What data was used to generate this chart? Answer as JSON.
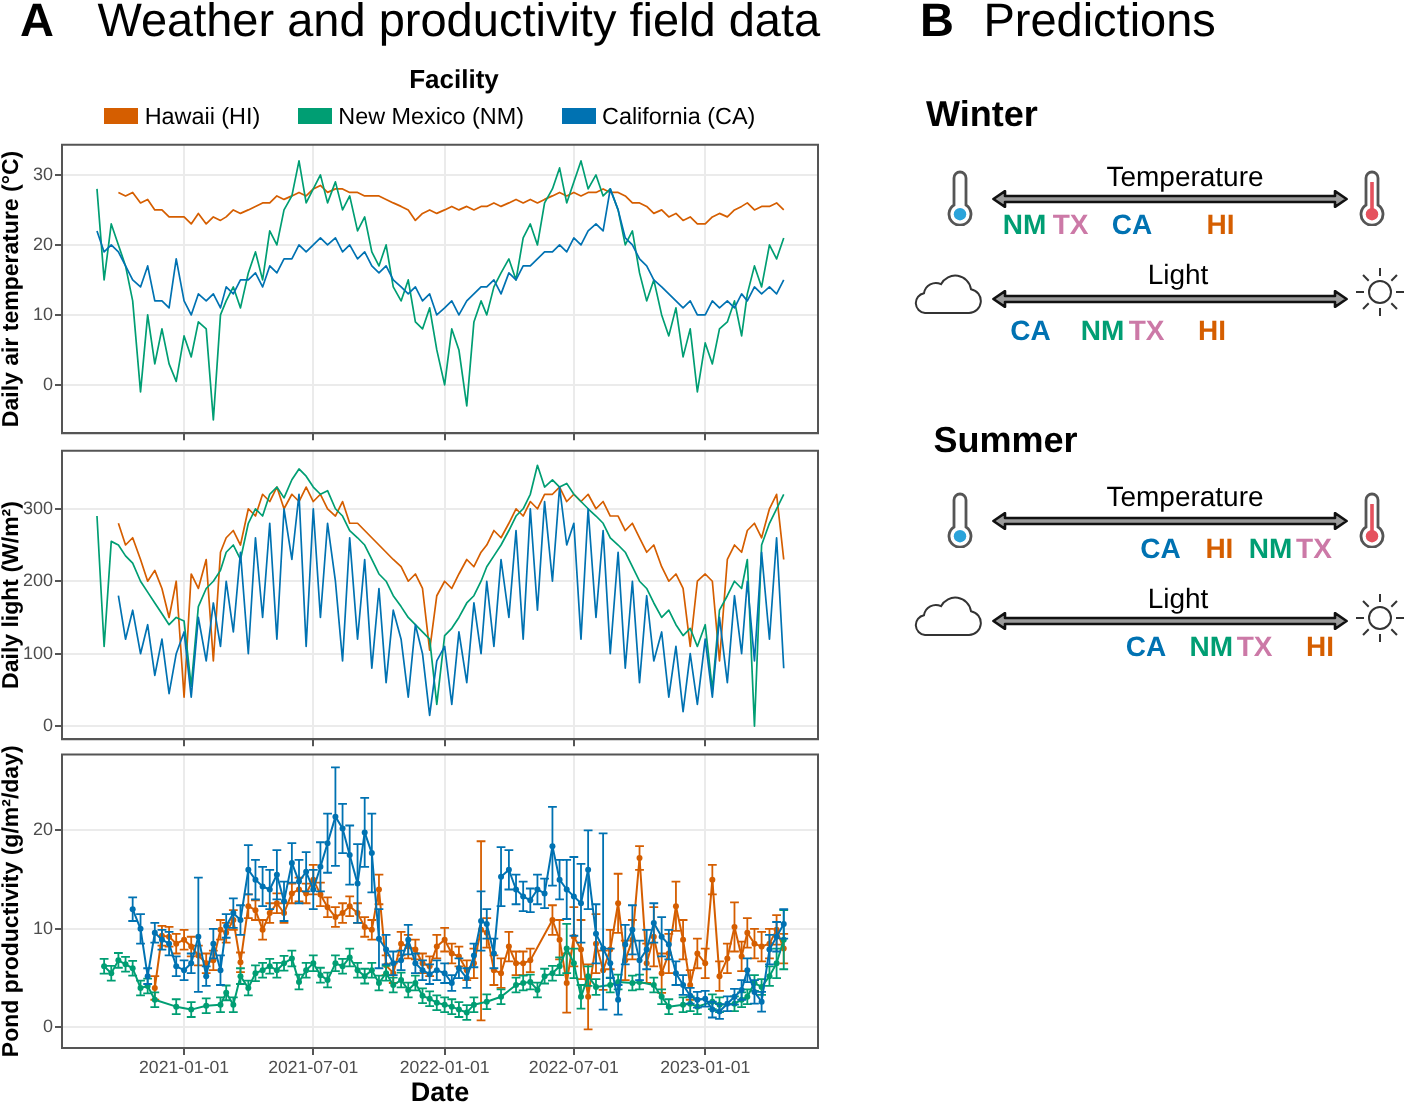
{
  "chart_data": [
    {
      "type": "line",
      "title": "Weather and productivity field data",
      "annotations": [
        "A"
      ],
      "legend_title": "Facility",
      "legend": "top",
      "ylabel": "Daily air temperature (°C)",
      "tick_labels": "y",
      "grid": true,
      "x": [
        "2020-09-01",
        "2020-09-11",
        "2020-09-21",
        "2020-10-01",
        "2020-10-11",
        "2020-10-21",
        "2020-11-01",
        "2020-11-11",
        "2020-11-21",
        "2020-12-01",
        "2020-12-11",
        "2020-12-21",
        "2021-01-01",
        "2021-01-11",
        "2021-01-21",
        "2021-02-01",
        "2021-02-11",
        "2021-02-21",
        "2021-03-01",
        "2021-03-11",
        "2021-03-21",
        "2021-04-01",
        "2021-04-11",
        "2021-04-21",
        "2021-05-01",
        "2021-05-11",
        "2021-05-21",
        "2021-06-01",
        "2021-06-11",
        "2021-06-21",
        "2021-07-01",
        "2021-07-11",
        "2021-07-21",
        "2021-08-01",
        "2021-08-11",
        "2021-08-21",
        "2021-09-01",
        "2021-09-11",
        "2021-09-21",
        "2021-10-01",
        "2021-10-11",
        "2021-10-21",
        "2021-11-01",
        "2021-11-11",
        "2021-11-21",
        "2021-12-01",
        "2021-12-11",
        "2021-12-21",
        "2022-01-01",
        "2022-01-11",
        "2022-01-21",
        "2022-02-01",
        "2022-02-11",
        "2022-02-21",
        "2022-03-01",
        "2022-03-11",
        "2022-03-21",
        "2022-04-01",
        "2022-04-11",
        "2022-04-21",
        "2022-05-01",
        "2022-05-11",
        "2022-05-21",
        "2022-06-01",
        "2022-06-11",
        "2022-06-21",
        "2022-07-01",
        "2022-07-11",
        "2022-07-21",
        "2022-08-01",
        "2022-08-11",
        "2022-08-21",
        "2022-09-01",
        "2022-09-11",
        "2022-09-21",
        "2022-10-01",
        "2022-10-11",
        "2022-10-21",
        "2022-11-01",
        "2022-11-11",
        "2022-11-21",
        "2022-12-01",
        "2022-12-11",
        "2022-12-21",
        "2023-01-01",
        "2023-01-11",
        "2023-01-21",
        "2023-02-01",
        "2023-02-11",
        "2023-02-21",
        "2023-03-01",
        "2023-03-11",
        "2023-03-21",
        "2023-04-01",
        "2023-04-11",
        "2023-04-21"
      ],
      "xlim": [
        "2020-07-14",
        "2023-06-08"
      ],
      "xticks": [
        "2021-01-01",
        "2021-07-01",
        "2022-01-01",
        "2022-07-01",
        "2023-01-01"
      ],
      "ylim": [
        -6.9,
        34.3
      ],
      "yticks": [
        0,
        10,
        20,
        30
      ],
      "series": [
        {
          "name": "Hawaii (HI)",
          "color": "#d55e00",
          "values": [
            null,
            null,
            null,
            27.5,
            27,
            27.5,
            26,
            26.5,
            25,
            25,
            24,
            24,
            24,
            23,
            24.5,
            23,
            24,
            23.5,
            24,
            25,
            24.5,
            25,
            25.5,
            26,
            26,
            27,
            26.5,
            27,
            27.5,
            27,
            28,
            28.5,
            27.5,
            28,
            28,
            27.5,
            27.5,
            27,
            27,
            27,
            26.5,
            26,
            25.5,
            25,
            23.5,
            24.5,
            25,
            24.5,
            25,
            25.5,
            25,
            25.5,
            25,
            25.5,
            25.5,
            26,
            25.5,
            26,
            26.5,
            26,
            26.5,
            26,
            26.5,
            27,
            27.5,
            27,
            27.5,
            27,
            27.5,
            27.5,
            28,
            27.5,
            27.5,
            27,
            26,
            26,
            25.5,
            24.5,
            25,
            24,
            24.5,
            23.5,
            24,
            23,
            23,
            24,
            24.5,
            24,
            25,
            25.5,
            26,
            25,
            25.5,
            25.5,
            26,
            25
          ]
        },
        {
          "name": "New Mexico (NM)",
          "color": "#009e73",
          "values": [
            28,
            15,
            23,
            20,
            17,
            12,
            -1,
            10,
            3,
            8,
            3,
            0.5,
            7,
            4,
            9,
            8,
            -5,
            10,
            12,
            14,
            11,
            16,
            19,
            15,
            22,
            20,
            25,
            27,
            32,
            26,
            28,
            30,
            26,
            29,
            25,
            27,
            22,
            24,
            19,
            17,
            20,
            14,
            12,
            15,
            9,
            8,
            11,
            5,
            0,
            8,
            5,
            -3,
            9,
            12,
            10,
            14,
            16,
            18,
            15,
            21,
            23,
            20,
            26,
            28,
            31,
            26,
            29,
            32,
            28,
            30,
            27,
            28,
            25,
            20,
            22,
            16,
            12,
            15,
            10,
            7,
            11,
            4,
            8,
            -1,
            6,
            3,
            8,
            9,
            12,
            7,
            13,
            17,
            14,
            20,
            18,
            21
          ]
        },
        {
          "name": "California (CA)",
          "color": "#0072b2",
          "values": [
            22,
            19,
            20,
            19,
            17,
            15,
            14,
            17,
            12,
            12,
            11,
            18,
            12,
            10,
            13,
            12,
            13,
            11,
            14,
            13,
            15,
            15,
            16,
            14,
            17,
            16,
            18,
            18,
            20,
            19,
            20,
            21,
            20,
            21,
            19,
            20,
            18,
            19,
            17,
            16,
            17,
            15,
            14,
            13,
            14,
            12,
            13,
            10,
            11,
            12,
            10,
            12,
            13,
            14,
            14,
            15,
            13,
            16,
            15,
            17,
            17,
            18,
            19,
            19,
            20,
            19,
            21,
            20,
            22,
            23,
            22,
            28,
            25,
            21,
            20,
            18,
            17,
            15,
            14,
            13,
            12,
            11,
            12,
            10,
            10,
            12,
            11,
            12,
            11,
            13,
            12,
            14,
            13,
            14,
            13,
            15
          ]
        }
      ]
    },
    {
      "type": "line",
      "ylabel": "Daily light (W/m²)",
      "tick_labels": "y",
      "grid": true,
      "x": [
        "2020-09-01",
        "2020-09-11",
        "2020-09-21",
        "2020-10-01",
        "2020-10-11",
        "2020-10-21",
        "2020-11-01",
        "2020-11-11",
        "2020-11-21",
        "2020-12-01",
        "2020-12-11",
        "2020-12-21",
        "2021-01-01",
        "2021-01-11",
        "2021-01-21",
        "2021-02-01",
        "2021-02-11",
        "2021-02-21",
        "2021-03-01",
        "2021-03-11",
        "2021-03-21",
        "2021-04-01",
        "2021-04-11",
        "2021-04-21",
        "2021-05-01",
        "2021-05-11",
        "2021-05-21",
        "2021-06-01",
        "2021-06-11",
        "2021-06-21",
        "2021-07-01",
        "2021-07-11",
        "2021-07-21",
        "2021-08-01",
        "2021-08-11",
        "2021-08-21",
        "2021-09-01",
        "2021-09-11",
        "2021-09-21",
        "2021-10-01",
        "2021-10-11",
        "2021-10-21",
        "2021-11-01",
        "2021-11-11",
        "2021-11-21",
        "2021-12-01",
        "2021-12-11",
        "2021-12-21",
        "2022-01-01",
        "2022-01-11",
        "2022-01-21",
        "2022-02-01",
        "2022-02-11",
        "2022-02-21",
        "2022-03-01",
        "2022-03-11",
        "2022-03-21",
        "2022-04-01",
        "2022-04-11",
        "2022-04-21",
        "2022-05-01",
        "2022-05-11",
        "2022-05-21",
        "2022-06-01",
        "2022-06-11",
        "2022-06-21",
        "2022-07-01",
        "2022-07-11",
        "2022-07-21",
        "2022-08-01",
        "2022-08-11",
        "2022-08-21",
        "2022-09-01",
        "2022-09-11",
        "2022-09-21",
        "2022-10-01",
        "2022-10-11",
        "2022-10-21",
        "2022-11-01",
        "2022-11-11",
        "2022-11-21",
        "2022-12-01",
        "2022-12-11",
        "2022-12-21",
        "2023-01-01",
        "2023-01-11",
        "2023-01-21",
        "2023-02-01",
        "2023-02-11",
        "2023-02-21",
        "2023-03-01",
        "2023-03-11",
        "2023-03-21",
        "2023-04-01",
        "2023-04-11",
        "2023-04-21"
      ],
      "xlim": [
        "2020-07-14",
        "2023-06-08"
      ],
      "xticks": [
        "2021-01-01",
        "2021-07-01",
        "2022-01-01",
        "2022-07-01",
        "2023-01-01"
      ],
      "ylim": [
        -18,
        380
      ],
      "yticks": [
        0,
        100,
        200,
        300
      ],
      "series": [
        {
          "color": "#d55e00",
          "values": [
            null,
            null,
            null,
            280,
            250,
            260,
            230,
            200,
            215,
            190,
            150,
            200,
            40,
            210,
            190,
            230,
            90,
            240,
            260,
            270,
            250,
            300,
            290,
            320,
            310,
            330,
            300,
            320,
            310,
            330,
            310,
            320,
            300,
            290,
            310,
            280,
            280,
            270,
            260,
            250,
            240,
            230,
            220,
            200,
            210,
            190,
            105,
            180,
            200,
            190,
            210,
            230,
            220,
            240,
            250,
            270,
            260,
            280,
            300,
            290,
            310,
            300,
            320,
            320,
            330,
            310,
            320,
            310,
            320,
            300,
            310,
            290,
            290,
            270,
            280,
            260,
            240,
            250,
            220,
            200,
            210,
            190,
            110,
            200,
            210,
            200,
            90,
            230,
            250,
            240,
            270,
            280,
            260,
            300,
            320,
            230
          ]
        },
        {
          "color": "#009e73",
          "values": [
            290,
            110,
            255,
            250,
            235,
            225,
            200,
            185,
            170,
            155,
            140,
            150,
            145,
            55,
            165,
            190,
            200,
            215,
            240,
            250,
            230,
            280,
            300,
            290,
            320,
            330,
            315,
            340,
            355,
            345,
            330,
            320,
            325,
            300,
            290,
            270,
            260,
            250,
            230,
            210,
            200,
            180,
            165,
            150,
            140,
            130,
            120,
            30,
            125,
            135,
            150,
            170,
            180,
            200,
            220,
            235,
            250,
            270,
            290,
            300,
            320,
            360,
            330,
            340,
            330,
            335,
            320,
            310,
            300,
            290,
            280,
            260,
            250,
            240,
            220,
            200,
            190,
            170,
            150,
            160,
            140,
            125,
            135,
            110,
            140,
            50,
            160,
            180,
            200,
            190,
            230,
            0,
            250,
            280,
            300,
            320
          ]
        },
        {
          "color": "#0072b2",
          "values": [
            null,
            null,
            null,
            180,
            120,
            160,
            100,
            140,
            70,
            120,
            45,
            100,
            130,
            40,
            150,
            90,
            170,
            110,
            200,
            130,
            240,
            100,
            260,
            150,
            280,
            120,
            300,
            230,
            320,
            110,
            300,
            150,
            280,
            200,
            90,
            260,
            120,
            230,
            80,
            190,
            60,
            160,
            120,
            40,
            140,
            100,
            15,
            90,
            110,
            30,
            130,
            60,
            170,
            100,
            200,
            110,
            230,
            150,
            270,
            120,
            300,
            160,
            310,
            200,
            330,
            250,
            280,
            120,
            300,
            150,
            270,
            100,
            240,
            80,
            200,
            60,
            180,
            90,
            130,
            40,
            110,
            20,
            100,
            30,
            120,
            40,
            150,
            60,
            180,
            100,
            200,
            90,
            240,
            120,
            260,
            80
          ]
        }
      ]
    },
    {
      "type": "line",
      "xlabel": "Date",
      "ylabel": "Pond productivity (g/m²/day)",
      "grid": true,
      "marker": "circle",
      "xlim": [
        "2020-07-14",
        "2023-06-08"
      ],
      "xticks": [
        "2021-01-01",
        "2021-07-01",
        "2022-01-01",
        "2022-07-01",
        "2023-01-01"
      ],
      "ylim": [
        -2.1,
        27.7
      ],
      "yticks": [
        0,
        10,
        20
      ],
      "series": [
        {
          "color": "#d55e00",
          "x": [
            "2020-11-21",
            "2020-12-01",
            "2020-12-11",
            "2020-12-21",
            "2021-01-01",
            "2021-01-11",
            "2021-01-21",
            "2021-02-01",
            "2021-02-11",
            "2021-02-21",
            "2021-03-01",
            "2021-03-11",
            "2021-03-21",
            "2021-04-01",
            "2021-04-11",
            "2021-04-21",
            "2021-05-01",
            "2021-05-11",
            "2021-05-21",
            "2021-06-01",
            "2021-06-11",
            "2021-06-21",
            "2021-07-01",
            "2021-07-11",
            "2021-07-21",
            "2021-08-01",
            "2021-08-11",
            "2021-08-21",
            "2021-09-01",
            "2021-09-11",
            "2021-09-21",
            "2021-10-01",
            "2021-10-11",
            "2021-10-21",
            "2021-11-01",
            "2021-11-11",
            "2021-11-21",
            "2021-12-01",
            "2021-12-11",
            "2021-12-21",
            "2022-01-01",
            "2022-01-11",
            "2022-01-21",
            "2022-02-01",
            "2022-02-11",
            "2022-02-21",
            "2022-03-01",
            "2022-03-11",
            "2022-03-21",
            "2022-04-01",
            "2022-04-11",
            "2022-04-21",
            "2022-05-01",
            "2022-06-01",
            "2022-06-11",
            "2022-06-21",
            "2022-07-01",
            "2022-07-11",
            "2022-07-21",
            "2022-08-01",
            "2022-08-11",
            "2022-08-21",
            "2022-09-01",
            "2022-09-11",
            "2022-09-21",
            "2022-10-01",
            "2022-10-11",
            "2022-10-21",
            "2022-11-01",
            "2022-11-11",
            "2022-11-21",
            "2022-12-01",
            "2022-12-11",
            "2022-12-21",
            "2023-01-01",
            "2023-01-11",
            "2023-01-21",
            "2023-02-01",
            "2023-02-11",
            "2023-02-21",
            "2023-03-01",
            "2023-03-11",
            "2023-03-21",
            "2023-04-01",
            "2023-04-11",
            "2023-04-21"
          ],
          "values": [
            4.0,
            9.3,
            9.2,
            8.5,
            8.9,
            8.2,
            7.3,
            6.5,
            6.8,
            9.9,
            9.6,
            10.9,
            6.6,
            12.3,
            11.9,
            9.9,
            11.6,
            12.6,
            11.6,
            13.6,
            14.0,
            13.6,
            15.0,
            13.5,
            12.2,
            11.2,
            11.6,
            12.3,
            11.6,
            10.2,
            9.9,
            14.0,
            6.3,
            5.5,
            8.5,
            8.2,
            7.9,
            6.5,
            6.2,
            8.2,
            8.9,
            7.5,
            7.2,
            5.8,
            6.5,
            9.9,
            9.6,
            5.8,
            5.5,
            8.2,
            6.5,
            6.5,
            6.8,
            10.9,
            8.9,
            4.5,
            9.2,
            7.9,
            3.1,
            8.5,
            5.8,
            7.9,
            12.6,
            6.8,
            8.9,
            17.2,
            6.5,
            9.2,
            5.5,
            7.5,
            12.3,
            8.9,
            4.3,
            7.5,
            6.5,
            15.0,
            5.2,
            7.0,
            10.2,
            7.2,
            9.6,
            8.5,
            8.2,
            8.5,
            9.9,
            8.0
          ],
          "errors": [
            1.2,
            1,
            1,
            1,
            1,
            1,
            1,
            1,
            1,
            1,
            1,
            1,
            1,
            1.2,
            1,
            1,
            1,
            1,
            1,
            1,
            1.2,
            1,
            1.5,
            1.2,
            1,
            1,
            1,
            1,
            1,
            1,
            1,
            1.5,
            1,
            1,
            1.2,
            1.2,
            1,
            1,
            1,
            1.2,
            1.2,
            1,
            1,
            1,
            1.5,
            [
              0.7,
              18.9
            ],
            1.5,
            1.5,
            1.5,
            1.5,
            1.2,
            1.2,
            1.2,
            1.5,
            2,
            3,
            3,
            3,
            3.3,
            3,
            2,
            2,
            3,
            2,
            2,
            1.2,
            2,
            3,
            2,
            2,
            2.5,
            2,
            1.5,
            1.5,
            1.5,
            1.5,
            1.5,
            1.5,
            2.5,
            1.5,
            1.5,
            1.5,
            1.5,
            1.5,
            1.5,
            1.5
          ]
        },
        {
          "color": "#009e73",
          "x": [
            "2020-09-11",
            "2020-09-21",
            "2020-10-01",
            "2020-10-11",
            "2020-10-21",
            "2020-11-01",
            "2020-11-11",
            "2020-11-21",
            "2020-12-21",
            "2021-01-11",
            "2021-02-01",
            "2021-02-21",
            "2021-03-01",
            "2021-03-11",
            "2021-03-21",
            "2021-04-01",
            "2021-04-11",
            "2021-04-21",
            "2021-05-01",
            "2021-05-11",
            "2021-05-21",
            "2021-06-01",
            "2021-06-11",
            "2021-06-21",
            "2021-07-01",
            "2021-07-11",
            "2021-07-21",
            "2021-08-01",
            "2021-08-11",
            "2021-08-21",
            "2021-09-01",
            "2021-09-11",
            "2021-09-21",
            "2021-10-01",
            "2021-10-11",
            "2021-10-21",
            "2021-11-01",
            "2021-11-11",
            "2021-11-21",
            "2021-12-01",
            "2021-12-11",
            "2021-12-21",
            "2022-01-01",
            "2022-01-11",
            "2022-01-21",
            "2022-02-01",
            "2022-02-11",
            "2022-03-01",
            "2022-03-21",
            "2022-04-11",
            "2022-04-21",
            "2022-05-01",
            "2022-05-11",
            "2022-05-21",
            "2022-06-01",
            "2022-06-11",
            "2022-06-21",
            "2022-07-01",
            "2022-07-11",
            "2022-07-21",
            "2022-08-01",
            "2022-08-21",
            "2022-09-01",
            "2022-09-21",
            "2022-10-01",
            "2022-10-21",
            "2022-11-01",
            "2022-11-11",
            "2022-12-01",
            "2022-12-11",
            "2022-12-21",
            "2023-01-11",
            "2023-01-21",
            "2023-02-11",
            "2023-02-21",
            "2023-03-01",
            "2023-03-11",
            "2023-03-21",
            "2023-04-01",
            "2023-04-11",
            "2023-04-21"
          ],
          "values": [
            6.2,
            5.5,
            6.8,
            6.4,
            6.0,
            4.0,
            4.2,
            2.8,
            2.1,
            1.8,
            2.2,
            2.3,
            3.5,
            2.3,
            5.2,
            4.0,
            5.5,
            5.8,
            6.2,
            5.8,
            6.5,
            7.0,
            4.6,
            5.8,
            6.5,
            5.3,
            4.8,
            6.5,
            6.2,
            7.1,
            5.8,
            5.2,
            5.8,
            4.5,
            5.5,
            4.3,
            4.8,
            3.8,
            4.5,
            3.2,
            2.9,
            2.5,
            2.3,
            2.1,
            1.8,
            1.5,
            2.3,
            2.6,
            3.1,
            4.3,
            4.5,
            4.6,
            3.8,
            5.2,
            5.5,
            6.2,
            8.0,
            6.5,
            3.1,
            5.2,
            4.1,
            4.3,
            4.6,
            4.5,
            4.6,
            4.3,
            3.1,
            2.1,
            2.3,
            2.4,
            2.1,
            2.6,
            2.3,
            2.4,
            2.8,
            3.1,
            4.5,
            4.1,
            5.2,
            6.5,
            8.9
          ],
          "errors": [
            0.75,
            0.75,
            0.75,
            0.75,
            0.75,
            0.75,
            0.75,
            0.75,
            0.75,
            0.75,
            0.75,
            0.75,
            0.75,
            0.75,
            0.8,
            0.75,
            0.8,
            0.75,
            0.75,
            0.75,
            0.75,
            0.8,
            0.75,
            0.75,
            0.8,
            0.75,
            0.75,
            0.8,
            0.75,
            0.9,
            0.75,
            0.75,
            0.75,
            0.75,
            0.75,
            0.75,
            0.75,
            0.75,
            0.75,
            0.75,
            0.75,
            0.75,
            0.75,
            0.75,
            0.75,
            0.75,
            0.75,
            0.75,
            0.75,
            0.75,
            0.75,
            0.75,
            0.75,
            0.75,
            0.75,
            0.9,
            2.5,
            1.5,
            1.2,
            1,
            0.8,
            0.75,
            0.75,
            0.75,
            0.75,
            0.75,
            0.75,
            0.75,
            0.75,
            0.75,
            0.75,
            0.75,
            0.75,
            0.75,
            0.75,
            0.75,
            0.8,
            0.8,
            1,
            1.5,
            3
          ]
        },
        {
          "color": "#0072b2",
          "x": [
            "2020-10-21",
            "2020-11-01",
            "2020-11-11",
            "2020-11-21",
            "2020-12-01",
            "2020-12-11",
            "2020-12-21",
            "2021-01-01",
            "2021-01-11",
            "2021-01-21",
            "2021-02-01",
            "2021-02-11",
            "2021-02-21",
            "2021-03-01",
            "2021-03-11",
            "2021-03-21",
            "2021-04-01",
            "2021-04-11",
            "2021-04-21",
            "2021-05-01",
            "2021-05-11",
            "2021-05-21",
            "2021-06-01",
            "2021-06-11",
            "2021-06-21",
            "2021-07-01",
            "2021-07-11",
            "2021-07-21",
            "2021-08-01",
            "2021-08-11",
            "2021-08-21",
            "2021-09-01",
            "2021-09-11",
            "2021-09-21",
            "2021-10-01",
            "2021-10-11",
            "2021-10-21",
            "2021-11-01",
            "2021-11-11",
            "2021-11-21",
            "2021-12-01",
            "2021-12-11",
            "2021-12-21",
            "2022-01-01",
            "2022-01-11",
            "2022-01-21",
            "2022-02-01",
            "2022-02-11",
            "2022-02-21",
            "2022-03-01",
            "2022-03-11",
            "2022-03-21",
            "2022-04-01",
            "2022-04-11",
            "2022-04-21",
            "2022-05-01",
            "2022-05-11",
            "2022-05-21",
            "2022-06-01",
            "2022-06-11",
            "2022-06-21",
            "2022-07-01",
            "2022-07-11",
            "2022-07-21",
            "2022-08-01",
            "2022-08-11",
            "2022-08-21",
            "2022-09-01",
            "2022-09-11",
            "2022-09-21",
            "2022-10-01",
            "2022-10-11",
            "2022-10-21",
            "2022-11-01",
            "2022-11-11",
            "2022-11-21",
            "2022-12-01",
            "2022-12-11",
            "2022-12-21",
            "2023-01-01",
            "2023-01-11",
            "2023-01-21",
            "2023-02-01",
            "2023-02-11",
            "2023-02-21",
            "2023-03-01",
            "2023-03-11",
            "2023-03-21",
            "2023-04-01",
            "2023-04-11",
            "2023-04-21"
          ],
          "values": [
            12.0,
            10.0,
            5.2,
            9.6,
            8.9,
            8.5,
            6.2,
            5.8,
            6.5,
            9.2,
            5.2,
            8.5,
            5.8,
            10.3,
            11.6,
            10.9,
            16.0,
            15.0,
            14.3,
            14.0,
            15.5,
            12.8,
            16.7,
            14.8,
            15.8,
            14.0,
            16.3,
            18.7,
            21.4,
            20.2,
            17.5,
            14.6,
            19.8,
            17.7,
            9.0,
            7.9,
            6.5,
            6.8,
            8.9,
            6.5,
            5.8,
            5.4,
            5.8,
            5.5,
            4.5,
            6.0,
            5.0,
            7.3,
            10.8,
            10.5,
            7.5,
            15.3,
            16.0,
            14.0,
            13.3,
            12.9,
            14.0,
            13.6,
            18.4,
            15.0,
            14.0,
            13.3,
            12.6,
            16.0,
            9.5,
            8.0,
            6.5,
            2.8,
            8.4,
            9.9,
            6.8,
            7.9,
            10.6,
            9.2,
            8.4,
            5.5,
            4.3,
            3.2,
            2.8,
            2.9,
            1.8,
            1.6,
            2.4,
            3.1,
            3.8,
            5.8,
            3.6,
            2.6,
            7.9,
            9.2,
            10.5
          ],
          "errors": [
            1.2,
            1.5,
            0.8,
            1,
            1,
            1.2,
            1,
            1,
            1,
            [
              3.6,
              15.2
            ],
            1,
            1.5,
            1.5,
            1.2,
            1.5,
            1.5,
            2.5,
            2,
            2,
            2,
            2.5,
            2,
            2,
            2.2,
            2,
            2,
            2.5,
            3,
            5,
            2.5,
            3,
            4,
            3.5,
            4,
            3,
            1.5,
            1.2,
            1,
            1.5,
            1,
            1,
            1,
            1,
            1,
            0.8,
            1,
            1,
            1.2,
            3,
            1.5,
            1.5,
            3,
            2,
            1.5,
            1.5,
            1.2,
            1.5,
            1.5,
            4,
            2,
            3,
            4,
            4,
            4,
            3,
            [
              1.8,
              19.7
            ],
            1.5,
            1.5,
            2,
            2.5,
            2,
            2,
            2,
            2,
            1.5,
            1.2,
            1,
            0.8,
            0.8,
            0.8,
            0.8,
            0.75,
            0.75,
            0.8,
            1,
            1.2,
            1.2,
            1,
            1.5,
            1.5,
            1.5
          ]
        }
      ]
    },
    {
      "type": "other",
      "title": "Predictions",
      "annotations": [
        "B",
        "Winter",
        "Temperature",
        "NM",
        "TX",
        "CA",
        "HI",
        "Light",
        "CA",
        "NM",
        "TX",
        "HI",
        "Summer",
        "Temperature",
        "CA",
        "HI",
        "NM",
        "TX",
        "Light",
        "CA",
        "NM",
        "TX",
        "HI"
      ],
      "colors": [
        "#000000",
        "#000000",
        "#000000",
        "#009e73",
        "#cc79a7",
        "#0072b2",
        "#d55e00",
        "#000000",
        "#0072b2",
        "#009e73",
        "#cc79a7",
        "#d55e00",
        "#000000",
        "#000000",
        "#0072b2",
        "#d55e00",
        "#009e73",
        "#cc79a7",
        "#000000",
        "#0072b2",
        "#009e73",
        "#cc79a7",
        "#d55e00"
      ]
    }
  ]
}
